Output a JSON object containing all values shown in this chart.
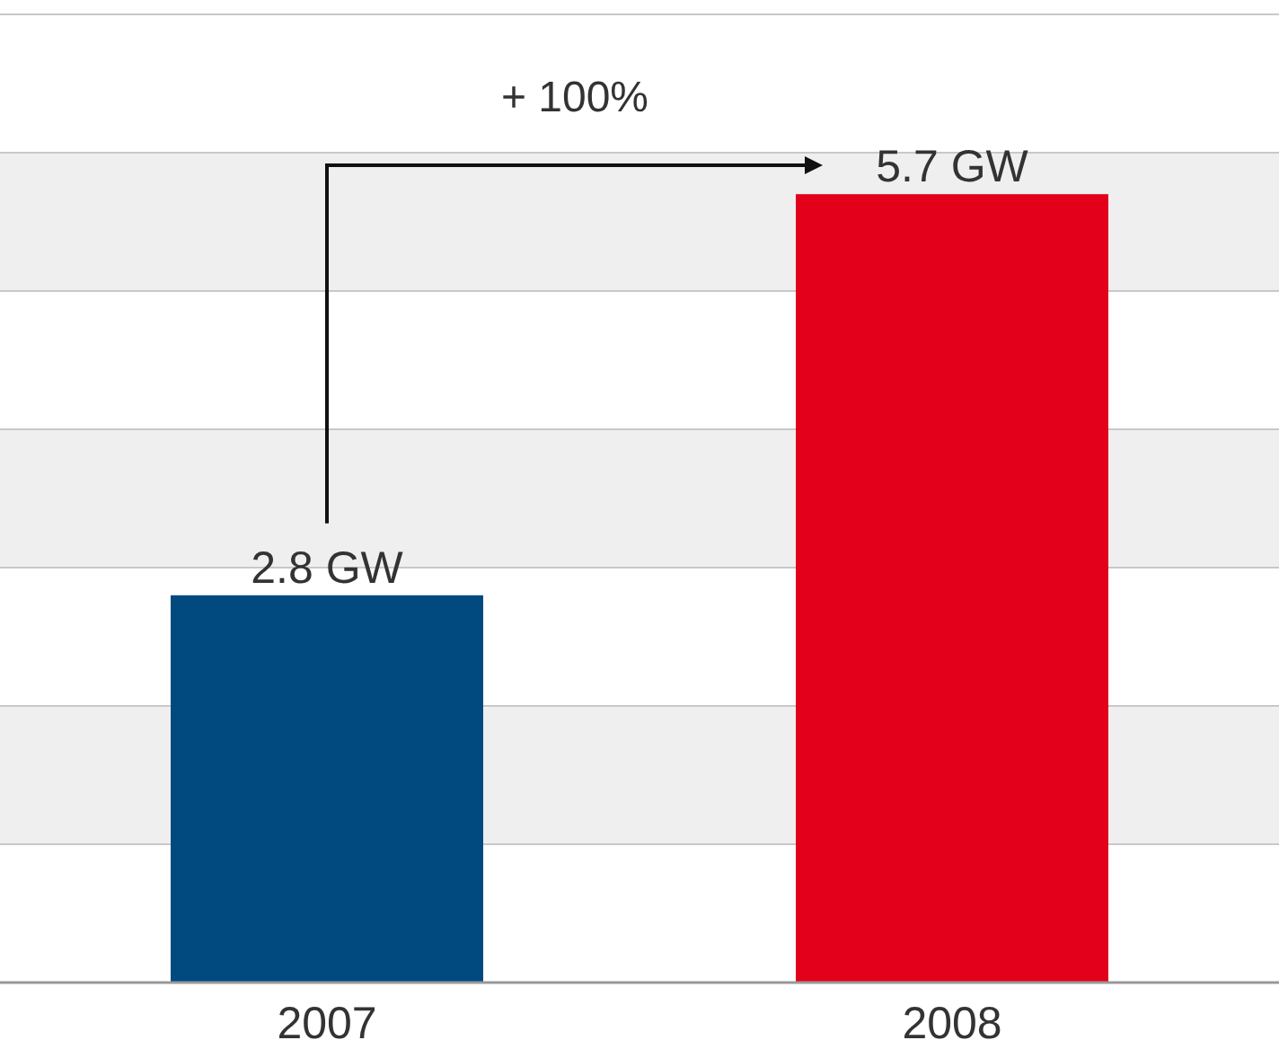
{
  "chart_data": {
    "type": "bar",
    "categories": [
      "2007",
      "2008"
    ],
    "values": [
      2.8,
      5.7
    ],
    "colors": [
      "#004a80",
      "#e2001a"
    ],
    "value_labels": [
      "2.8 GW",
      "5.7 GW"
    ],
    "ylim": [
      0,
      7
    ],
    "yticks": [
      {
        "value": 0,
        "label": null
      },
      {
        "value": 1,
        "label": null
      },
      {
        "value": 2,
        "label": null
      },
      {
        "value": 3,
        "label": null
      },
      {
        "value": 4,
        "label": null
      },
      {
        "value": 5,
        "label": null
      },
      {
        "value": 6,
        "label": null
      },
      {
        "value": 7,
        "label": null
      }
    ],
    "tick_labels": "x",
    "grid": "y",
    "annotations": [
      "+ 100%"
    ]
  }
}
